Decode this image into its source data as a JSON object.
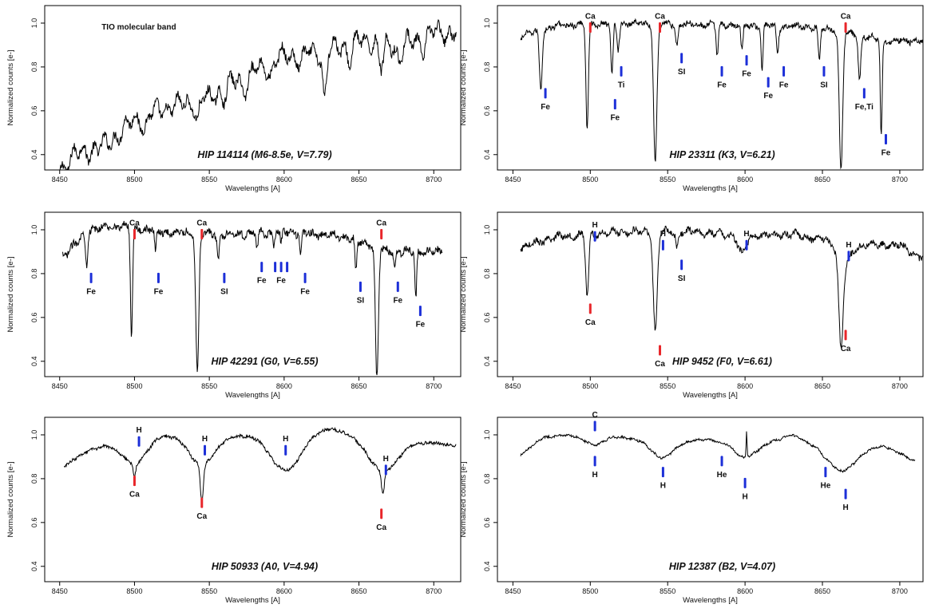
{
  "colors": {
    "spectrum": "#000000",
    "calcium_marker": "#e8262a",
    "other_marker": "#1c2fd8",
    "frame": "#000000"
  },
  "chart_data": [
    {
      "type": "line",
      "title": "HIP 114114 (M6-8.5e, V=7.79)",
      "xlabel": "Wavelengths [A]",
      "ylabel": "Normalized counts [e-]",
      "xlim": [
        8440,
        8718
      ],
      "ylim": [
        0.33,
        1.08
      ],
      "xticks": [
        8450,
        8500,
        8550,
        8600,
        8650,
        8700
      ],
      "yticks": [
        0.4,
        0.6,
        0.8,
        1.0
      ],
      "grid": false,
      "annotations": [
        {
          "text": "TIO molecular band",
          "x": 8478,
          "y": 0.97
        }
      ],
      "spectrum": {
        "x_start": 8450,
        "x_end": 8715,
        "continuum": [
          [
            8450,
            0.33
          ],
          [
            8460,
            0.4
          ],
          [
            8480,
            0.44
          ],
          [
            8500,
            0.56
          ],
          [
            8520,
            0.61
          ],
          [
            8550,
            0.66
          ],
          [
            8570,
            0.75
          ],
          [
            8600,
            0.85
          ],
          [
            8625,
            0.87
          ],
          [
            8650,
            0.92
          ],
          [
            8680,
            0.9
          ],
          [
            8700,
            0.96
          ],
          [
            8715,
            0.95
          ]
        ],
        "lines": [
          [
            8507,
            0.06,
            1.4
          ],
          [
            8542,
            0.1,
            1.2
          ],
          [
            8560,
            0.05,
            1.5
          ],
          [
            8574,
            0.06,
            2
          ],
          [
            8591,
            0.06,
            1.5
          ],
          [
            8611,
            0.05,
            1.5
          ],
          [
            8627,
            0.22,
            1.3
          ],
          [
            8644,
            0.08,
            1.5
          ],
          [
            8665,
            0.12,
            1.5
          ],
          [
            8677,
            0.07,
            1.5
          ],
          [
            8693,
            0.06,
            1.5
          ]
        ],
        "noise": 0.022,
        "wiggle": 0.05
      },
      "markers": []
    },
    {
      "type": "line",
      "title": "HIP 23311 (K3, V=6.21)",
      "xlabel": "Wavelengths [A]",
      "ylabel": "Normalized counts [e-]",
      "xlim": [
        8440,
        8715
      ],
      "ylim": [
        0.33,
        1.08
      ],
      "xticks": [
        8450,
        8500,
        8550,
        8600,
        8650,
        8700
      ],
      "yticks": [
        0.4,
        0.6,
        0.8,
        1.0
      ],
      "grid": false,
      "annotations": [],
      "spectrum": {
        "x_start": 8455,
        "x_end": 8715,
        "continuum": [
          [
            8455,
            0.94
          ],
          [
            8480,
            0.99
          ],
          [
            8520,
            1.0
          ],
          [
            8600,
            0.99
          ],
          [
            8650,
            0.98
          ],
          [
            8690,
            0.92
          ],
          [
            8715,
            0.92
          ]
        ],
        "lines": [
          [
            8468,
            0.26,
            0.9
          ],
          [
            8498,
            0.48,
            0.8
          ],
          [
            8514,
            0.24,
            0.7
          ],
          [
            8518,
            0.12,
            0.8
          ],
          [
            8542,
            0.63,
            1.1
          ],
          [
            8556,
            0.09,
            0.8
          ],
          [
            8582,
            0.14,
            0.7
          ],
          [
            8598,
            0.12,
            0.7
          ],
          [
            8611,
            0.22,
            0.6
          ],
          [
            8621,
            0.12,
            0.7
          ],
          [
            8648,
            0.16,
            0.7
          ],
          [
            8662,
            0.64,
            1.1
          ],
          [
            8674,
            0.2,
            0.8
          ],
          [
            8688,
            0.45,
            0.6
          ]
        ],
        "noise": 0.012,
        "wiggle": 0.012
      },
      "markers": [
        {
          "label": "Ca",
          "x": 8500,
          "y": 0.98,
          "side": "above",
          "kind": "Ca"
        },
        {
          "label": "Ca",
          "x": 8545,
          "y": 0.98,
          "side": "above",
          "kind": "Ca"
        },
        {
          "label": "Ca",
          "x": 8665,
          "y": 0.98,
          "side": "above",
          "kind": "Ca"
        },
        {
          "label": "Fe",
          "x": 8471,
          "y": 0.68,
          "side": "below",
          "kind": "other"
        },
        {
          "label": "Ti",
          "x": 8520,
          "y": 0.78,
          "side": "below",
          "kind": "other"
        },
        {
          "label": "Fe",
          "x": 8516,
          "y": 0.63,
          "side": "below",
          "kind": "other"
        },
        {
          "label": "SI",
          "x": 8559,
          "y": 0.84,
          "side": "below",
          "kind": "other"
        },
        {
          "label": "Fe",
          "x": 8585,
          "y": 0.78,
          "side": "below",
          "kind": "other"
        },
        {
          "label": "Fe",
          "x": 8601,
          "y": 0.83,
          "side": "below",
          "kind": "other"
        },
        {
          "label": "Fe",
          "x": 8615,
          "y": 0.73,
          "side": "below",
          "kind": "other"
        },
        {
          "label": "Fe",
          "x": 8625,
          "y": 0.78,
          "side": "below",
          "kind": "other"
        },
        {
          "label": "SI",
          "x": 8651,
          "y": 0.78,
          "side": "below",
          "kind": "other"
        },
        {
          "label": "Fe,Ti",
          "x": 8677,
          "y": 0.68,
          "side": "below",
          "kind": "other"
        },
        {
          "label": "Fe",
          "x": 8691,
          "y": 0.47,
          "side": "below",
          "kind": "other"
        }
      ]
    },
    {
      "type": "line",
      "title": "HIP 42291 (G0, V=6.55)",
      "xlabel": "Wavelengths [A]",
      "ylabel": "Normalized counts [e-]",
      "xlim": [
        8440,
        8718
      ],
      "ylim": [
        0.33,
        1.08
      ],
      "xticks": [
        8450,
        8500,
        8550,
        8600,
        8650,
        8700
      ],
      "yticks": [
        0.4,
        0.6,
        0.8,
        1.0
      ],
      "grid": false,
      "annotations": [],
      "spectrum": {
        "x_start": 8452,
        "x_end": 8706,
        "continuum": [
          [
            8452,
            0.88
          ],
          [
            8470,
            1.0
          ],
          [
            8490,
            1.02
          ],
          [
            8520,
            0.99
          ],
          [
            8560,
            0.98
          ],
          [
            8600,
            0.99
          ],
          [
            8640,
            0.97
          ],
          [
            8670,
            0.9
          ],
          [
            8706,
            0.9
          ]
        ],
        "lines": [
          [
            8468,
            0.14,
            0.7
          ],
          [
            8498,
            0.5,
            0.7
          ],
          [
            8514,
            0.1,
            0.6
          ],
          [
            8542,
            0.64,
            1.0
          ],
          [
            8556,
            0.12,
            0.7
          ],
          [
            8582,
            0.08,
            0.6
          ],
          [
            8593,
            0.06,
            0.6
          ],
          [
            8598,
            0.06,
            0.6
          ],
          [
            8611,
            0.1,
            0.6
          ],
          [
            8648,
            0.15,
            0.6
          ],
          [
            8662,
            0.6,
            1.0
          ],
          [
            8674,
            0.08,
            0.6
          ],
          [
            8688,
            0.22,
            0.6
          ]
        ],
        "noise": 0.016,
        "wiggle": 0.015
      },
      "markers": [
        {
          "label": "Ca",
          "x": 8500,
          "y": 0.98,
          "side": "above",
          "kind": "Ca"
        },
        {
          "label": "Ca",
          "x": 8545,
          "y": 0.98,
          "side": "above",
          "kind": "Ca"
        },
        {
          "label": "Ca",
          "x": 8665,
          "y": 0.98,
          "side": "above",
          "kind": "Ca"
        },
        {
          "label": "Fe",
          "x": 8471,
          "y": 0.78,
          "side": "below",
          "kind": "other"
        },
        {
          "label": "Fe",
          "x": 8516,
          "y": 0.78,
          "side": "below",
          "kind": "other"
        },
        {
          "label": "SI",
          "x": 8560,
          "y": 0.78,
          "side": "below",
          "kind": "other"
        },
        {
          "label": "Fe",
          "x": 8585,
          "y": 0.83,
          "side": "below",
          "kind": "other"
        },
        {
          "label": "Fe",
          "x": 8598,
          "y": 0.83,
          "side": "below",
          "kind": "other"
        },
        {
          "label": "",
          "x": 8594,
          "y": 0.83,
          "side": "below",
          "kind": "other"
        },
        {
          "label": "",
          "x": 8602,
          "y": 0.83,
          "side": "below",
          "kind": "other"
        },
        {
          "label": "Fe",
          "x": 8614,
          "y": 0.78,
          "side": "below",
          "kind": "other"
        },
        {
          "label": "SI",
          "x": 8651,
          "y": 0.74,
          "side": "below",
          "kind": "other"
        },
        {
          "label": "Fe",
          "x": 8676,
          "y": 0.74,
          "side": "below",
          "kind": "other"
        },
        {
          "label": "Fe",
          "x": 8691,
          "y": 0.63,
          "side": "below",
          "kind": "other"
        }
      ]
    },
    {
      "type": "line",
      "title": "HIP 9452 (F0, V=6.61)",
      "xlabel": "Wavelengths [A]",
      "ylabel": "Normalized counts [e-]",
      "xlim": [
        8440,
        8715
      ],
      "ylim": [
        0.33,
        1.08
      ],
      "xticks": [
        8450,
        8500,
        8550,
        8600,
        8650,
        8700
      ],
      "yticks": [
        0.4,
        0.6,
        0.8,
        1.0
      ],
      "grid": false,
      "annotations": [],
      "spectrum": {
        "x_start": 8455,
        "x_end": 8715,
        "continuum": [
          [
            8455,
            0.92
          ],
          [
            8480,
            0.97
          ],
          [
            8520,
            0.99
          ],
          [
            8570,
            0.99
          ],
          [
            8600,
            0.97
          ],
          [
            8630,
            0.98
          ],
          [
            8670,
            0.93
          ],
          [
            8700,
            0.93
          ],
          [
            8715,
            0.87
          ]
        ],
        "lines": [
          [
            8498,
            0.28,
            1.0
          ],
          [
            8542,
            0.45,
            1.3
          ],
          [
            8556,
            0.07,
            0.8
          ],
          [
            8598,
            0.08,
            2.5
          ],
          [
            8662,
            0.4,
            1.3
          ],
          [
            8664,
            0.1,
            4.0
          ]
        ],
        "noise": 0.014,
        "wiggle": 0.014
      },
      "markers": [
        {
          "label": "H",
          "x": 8503,
          "y": 0.97,
          "side": "above",
          "kind": "other"
        },
        {
          "label": "H",
          "x": 8547,
          "y": 0.93,
          "side": "above",
          "kind": "other"
        },
        {
          "label": "H",
          "x": 8601,
          "y": 0.93,
          "side": "above",
          "kind": "other"
        },
        {
          "label": "H",
          "x": 8667,
          "y": 0.88,
          "side": "above",
          "kind": "other"
        },
        {
          "label": "SI",
          "x": 8559,
          "y": 0.84,
          "side": "below",
          "kind": "other"
        },
        {
          "label": "Ca",
          "x": 8500,
          "y": 0.64,
          "side": "below",
          "kind": "Ca"
        },
        {
          "label": "Ca",
          "x": 8545,
          "y": 0.45,
          "side": "below",
          "kind": "Ca"
        },
        {
          "label": "Ca",
          "x": 8665,
          "y": 0.52,
          "side": "below",
          "kind": "Ca"
        }
      ]
    },
    {
      "type": "line",
      "title": "HIP 50933 (A0, V=4.94)",
      "xlabel": "Wavelengths [A]",
      "ylabel": "Normalized counts [e-]",
      "xlim": [
        8440,
        8718
      ],
      "ylim": [
        0.33,
        1.08
      ],
      "xticks": [
        8450,
        8500,
        8550,
        8600,
        8650,
        8700
      ],
      "yticks": [
        0.4,
        0.6,
        0.8,
        1.0
      ],
      "grid": false,
      "annotations": [],
      "spectrum": {
        "x_start": 8453,
        "x_end": 8715,
        "continuum": [
          [
            8453,
            0.86
          ],
          [
            8470,
            0.93
          ],
          [
            8490,
            0.97
          ],
          [
            8520,
            1.0
          ],
          [
            8545,
            0.98
          ],
          [
            8575,
            1.0
          ],
          [
            8610,
            1.01
          ],
          [
            8630,
            1.03
          ],
          [
            8650,
            1.0
          ],
          [
            8690,
            0.97
          ],
          [
            8715,
            0.95
          ]
        ],
        "lines": [
          [
            8500,
            0.11,
            8
          ],
          [
            8500,
            0.06,
            0.9
          ],
          [
            8545,
            0.12,
            8
          ],
          [
            8545,
            0.16,
            1.0
          ],
          [
            8601,
            0.17,
            10
          ],
          [
            8666,
            0.15,
            10
          ],
          [
            8666,
            0.11,
            1.0
          ]
        ],
        "noise": 0.007,
        "wiggle": 0.004
      },
      "markers": [
        {
          "label": "H",
          "x": 8503,
          "y": 0.97,
          "side": "above",
          "kind": "other"
        },
        {
          "label": "H",
          "x": 8547,
          "y": 0.93,
          "side": "above",
          "kind": "other"
        },
        {
          "label": "H",
          "x": 8601,
          "y": 0.93,
          "side": "above",
          "kind": "other"
        },
        {
          "label": "H",
          "x": 8668,
          "y": 0.84,
          "side": "above",
          "kind": "other"
        },
        {
          "label": "Ca",
          "x": 8500,
          "y": 0.79,
          "side": "below",
          "kind": "Ca"
        },
        {
          "label": "Ca",
          "x": 8545,
          "y": 0.69,
          "side": "below",
          "kind": "Ca"
        },
        {
          "label": "Ca",
          "x": 8665,
          "y": 0.64,
          "side": "below",
          "kind": "Ca"
        }
      ]
    },
    {
      "type": "line",
      "title": "HIP 12387 (B2, V=4.07)",
      "xlabel": "Wavelengths [A]",
      "ylabel": "Normalized counts [e-]",
      "xlim": [
        8440,
        8715
      ],
      "ylim": [
        0.33,
        1.08
      ],
      "xticks": [
        8450,
        8500,
        8550,
        8600,
        8650,
        8700
      ],
      "yticks": [
        0.4,
        0.6,
        0.8,
        1.0
      ],
      "grid": false,
      "annotations": [],
      "spectrum": {
        "x_start": 8455,
        "x_end": 8710,
        "continuum": [
          [
            8455,
            0.91
          ],
          [
            8470,
            0.99
          ],
          [
            8490,
            1.0
          ],
          [
            8520,
            0.99
          ],
          [
            8550,
            0.95
          ],
          [
            8580,
            0.99
          ],
          [
            8610,
            0.95
          ],
          [
            8630,
            1.0
          ],
          [
            8660,
            0.9
          ],
          [
            8690,
            0.95
          ],
          [
            8710,
            0.88
          ]
        ],
        "lines": [
          [
            8502,
            0.04,
            6
          ],
          [
            8546,
            0.06,
            6
          ],
          [
            8583,
            0.02,
            4
          ],
          [
            8599,
            0.07,
            6
          ],
          [
            8664,
            0.07,
            7
          ],
          [
            8652,
            0.02,
            3
          ],
          [
            8601,
            -0.12,
            0.3
          ]
        ],
        "noise": 0.005,
        "wiggle": 0.004
      },
      "markers": [
        {
          "label": "C",
          "x": 8503,
          "y": 1.04,
          "side": "above",
          "kind": "other"
        },
        {
          "label": "H",
          "x": 8503,
          "y": 0.88,
          "side": "below",
          "kind": "other"
        },
        {
          "label": "H",
          "x": 8547,
          "y": 0.83,
          "side": "below",
          "kind": "other"
        },
        {
          "label": "He",
          "x": 8585,
          "y": 0.88,
          "side": "below",
          "kind": "other"
        },
        {
          "label": "H",
          "x": 8600,
          "y": 0.78,
          "side": "below",
          "kind": "other"
        },
        {
          "label": "He",
          "x": 8652,
          "y": 0.83,
          "side": "below",
          "kind": "other"
        },
        {
          "label": "H",
          "x": 8665,
          "y": 0.73,
          "side": "below",
          "kind": "other"
        }
      ]
    }
  ]
}
